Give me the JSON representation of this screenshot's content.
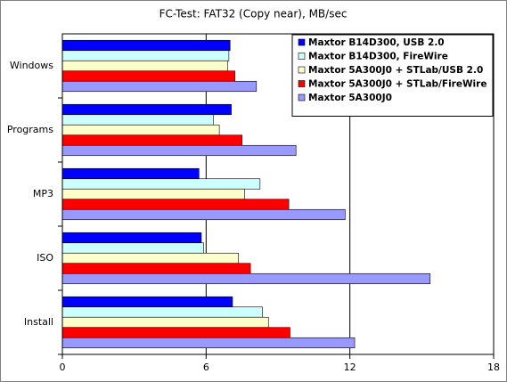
{
  "chart_data": {
    "type": "hbar",
    "title": "FC-Test: FAT32 (Copy near), MB/sec",
    "categories": [
      "Windows",
      "Programs",
      "MP3",
      "ISO",
      "Install"
    ],
    "series": [
      {
        "name": "Maxtor B14D300, USB 2.0",
        "color": "#0000ff",
        "values": [
          7.0,
          7.05,
          5.7,
          5.8,
          7.1
        ]
      },
      {
        "name": "Maxtor B14D300, FireWire",
        "color": "#ccffff",
        "values": [
          6.95,
          6.3,
          8.25,
          5.9,
          8.35
        ]
      },
      {
        "name": "Maxtor 5A300J0 + STLab/USB 2.0",
        "color": "#ffffcc",
        "values": [
          6.9,
          6.55,
          7.6,
          7.35,
          8.6
        ]
      },
      {
        "name": "Maxtor 5A300J0 + STLab/FireWire",
        "color": "#ff0000",
        "values": [
          7.2,
          7.5,
          9.45,
          7.85,
          9.5
        ]
      },
      {
        "name": "Maxtor 5A300J0",
        "color": "#9999ff",
        "values": [
          8.1,
          9.75,
          11.8,
          15.35,
          12.2
        ]
      }
    ],
    "xlim": [
      0,
      18
    ],
    "xticks": [
      0,
      6,
      12,
      18
    ],
    "grid": true,
    "legend": "top-right"
  }
}
